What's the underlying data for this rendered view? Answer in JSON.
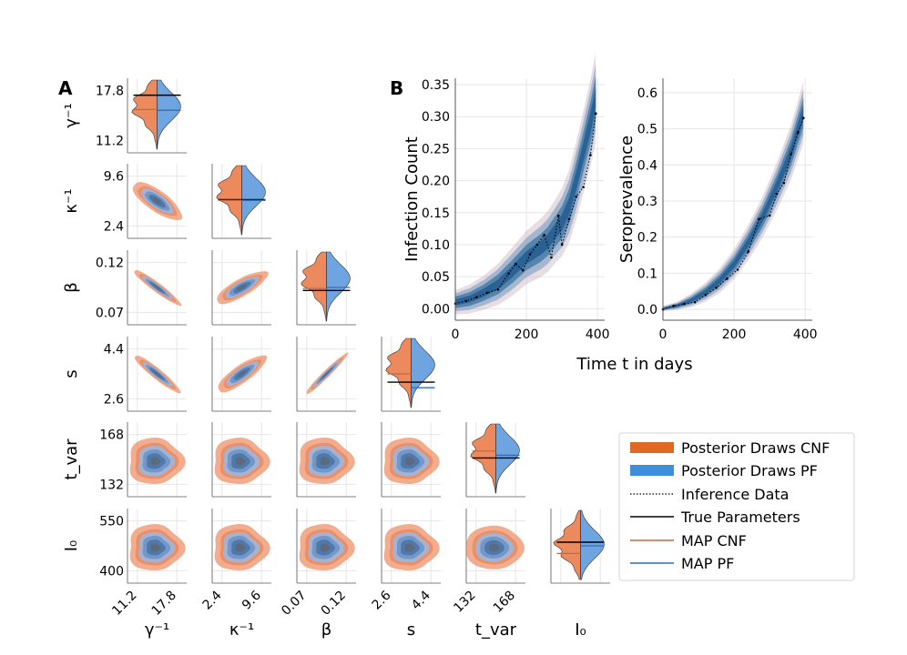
{
  "panels": {
    "a": "A",
    "b": "B"
  },
  "colors": {
    "cnf": "#ec8a5e",
    "cnf_legend": "#dd6a22",
    "pf": "#4a8fd8",
    "pf_legend": "#3d8fdc",
    "truth": "#000000",
    "map_cnf": "#c26a3f",
    "map_pf": "#2f6db5",
    "pf_dark": "#2b6296"
  },
  "chart_data": [
    {
      "type": "scatter",
      "title": "A",
      "description_params": [
        "gamma_inv",
        "kappa_inv",
        "beta",
        "s",
        "t_var",
        "I0"
      ],
      "param_labels": [
        "γ⁻¹",
        "κ⁻¹",
        "β",
        "s",
        "t_var",
        "I₀"
      ],
      "ticks": {
        "gamma_inv": [
          "11.2",
          "17.8"
        ],
        "kappa_inv": [
          "2.4",
          "9.6"
        ],
        "beta": [
          "0.07",
          "0.12"
        ],
        "s": [
          "2.6",
          "4.4"
        ],
        "t_var": [
          "132",
          "168"
        ],
        "I0": [
          "400",
          "550"
        ]
      },
      "tick_values": {
        "gamma_inv": [
          11.2,
          17.8
        ],
        "kappa_inv": [
          2.4,
          9.6
        ],
        "beta": [
          0.07,
          0.12
        ],
        "s": [
          2.6,
          4.4
        ],
        "t_var": [
          132,
          168
        ],
        "I0": [
          400,
          550
        ]
      },
      "true_parameters": {
        "gamma_inv": 17.2,
        "kappa_inv": 6.2,
        "beta": 0.092,
        "s": 3.2,
        "t_var": 151,
        "I0": 486
      },
      "map_cnf": {
        "gamma_inv": 15.3,
        "kappa_inv": 6.1,
        "beta": 0.094,
        "s": 3.5,
        "t_var": 156,
        "I0": 452
      },
      "map_pf": {
        "gamma_inv": 15.2,
        "kappa_inv": 6.1,
        "beta": 0.095,
        "s": 3.0,
        "t_var": 153,
        "I0": 475
      }
    },
    {
      "type": "line",
      "title": "B",
      "xlabel": "Time t in days",
      "ylabel": "Infection Count",
      "xlim": [
        0,
        420
      ],
      "ylim": [
        -0.018,
        0.36
      ],
      "x_ticks": [
        "0",
        "200",
        "400"
      ],
      "y_ticks": [
        "0.00",
        "0.05",
        "0.10",
        "0.15",
        "0.20",
        "0.25",
        "0.30",
        "0.35"
      ],
      "series": [
        {
          "name": "Posterior Draws CNF",
          "x": [
            0,
            40,
            80,
            120,
            160,
            200,
            240,
            260,
            280,
            300,
            320,
            340,
            360,
            380,
            395
          ],
          "y": [
            0.01,
            0.015,
            0.025,
            0.038,
            0.058,
            0.08,
            0.095,
            0.105,
            0.12,
            0.135,
            0.16,
            0.2,
            0.245,
            0.29,
            0.33
          ],
          "spread": [
            0.01,
            0.012,
            0.014,
            0.017,
            0.02,
            0.022,
            0.024,
            0.025,
            0.026,
            0.028,
            0.03,
            0.032,
            0.034,
            0.036,
            0.037
          ]
        },
        {
          "name": "Inference Data",
          "x": [
            0,
            30,
            60,
            90,
            120,
            150,
            170,
            190,
            210,
            230,
            250,
            270,
            290,
            300,
            320,
            340,
            360,
            380,
            395
          ],
          "y": [
            0.008,
            0.012,
            0.018,
            0.025,
            0.03,
            0.055,
            0.07,
            0.06,
            0.085,
            0.1,
            0.115,
            0.08,
            0.145,
            0.1,
            0.14,
            0.175,
            0.19,
            0.24,
            0.305
          ]
        }
      ]
    },
    {
      "type": "line",
      "title": "",
      "xlabel": "",
      "ylabel": "Seroprevalence",
      "xlim": [
        0,
        420
      ],
      "ylim": [
        -0.03,
        0.64
      ],
      "x_ticks": [
        "0",
        "200",
        "400"
      ],
      "y_ticks": [
        "0.0",
        "0.1",
        "0.2",
        "0.3",
        "0.4",
        "0.5",
        "0.6"
      ],
      "series": [
        {
          "name": "Posterior Draws PF",
          "x": [
            0,
            40,
            80,
            120,
            160,
            200,
            240,
            280,
            320,
            360,
            395
          ],
          "y": [
            0.002,
            0.01,
            0.025,
            0.048,
            0.08,
            0.125,
            0.185,
            0.255,
            0.34,
            0.435,
            0.545
          ],
          "spread": [
            0.004,
            0.006,
            0.01,
            0.014,
            0.018,
            0.022,
            0.026,
            0.03,
            0.035,
            0.04,
            0.045
          ]
        },
        {
          "name": "Inference Data",
          "x": [
            0,
            30,
            60,
            90,
            120,
            150,
            180,
            210,
            240,
            270,
            300,
            320,
            340,
            360,
            380,
            395
          ],
          "y": [
            0.0,
            0.01,
            0.015,
            0.02,
            0.04,
            0.06,
            0.085,
            0.11,
            0.16,
            0.25,
            0.26,
            0.32,
            0.35,
            0.43,
            0.49,
            0.53
          ]
        }
      ]
    }
  ],
  "legend": {
    "items": [
      "Posterior Draws CNF",
      "Posterior Draws PF",
      "Inference Data",
      "True Parameters",
      "MAP CNF",
      "MAP PF"
    ]
  }
}
